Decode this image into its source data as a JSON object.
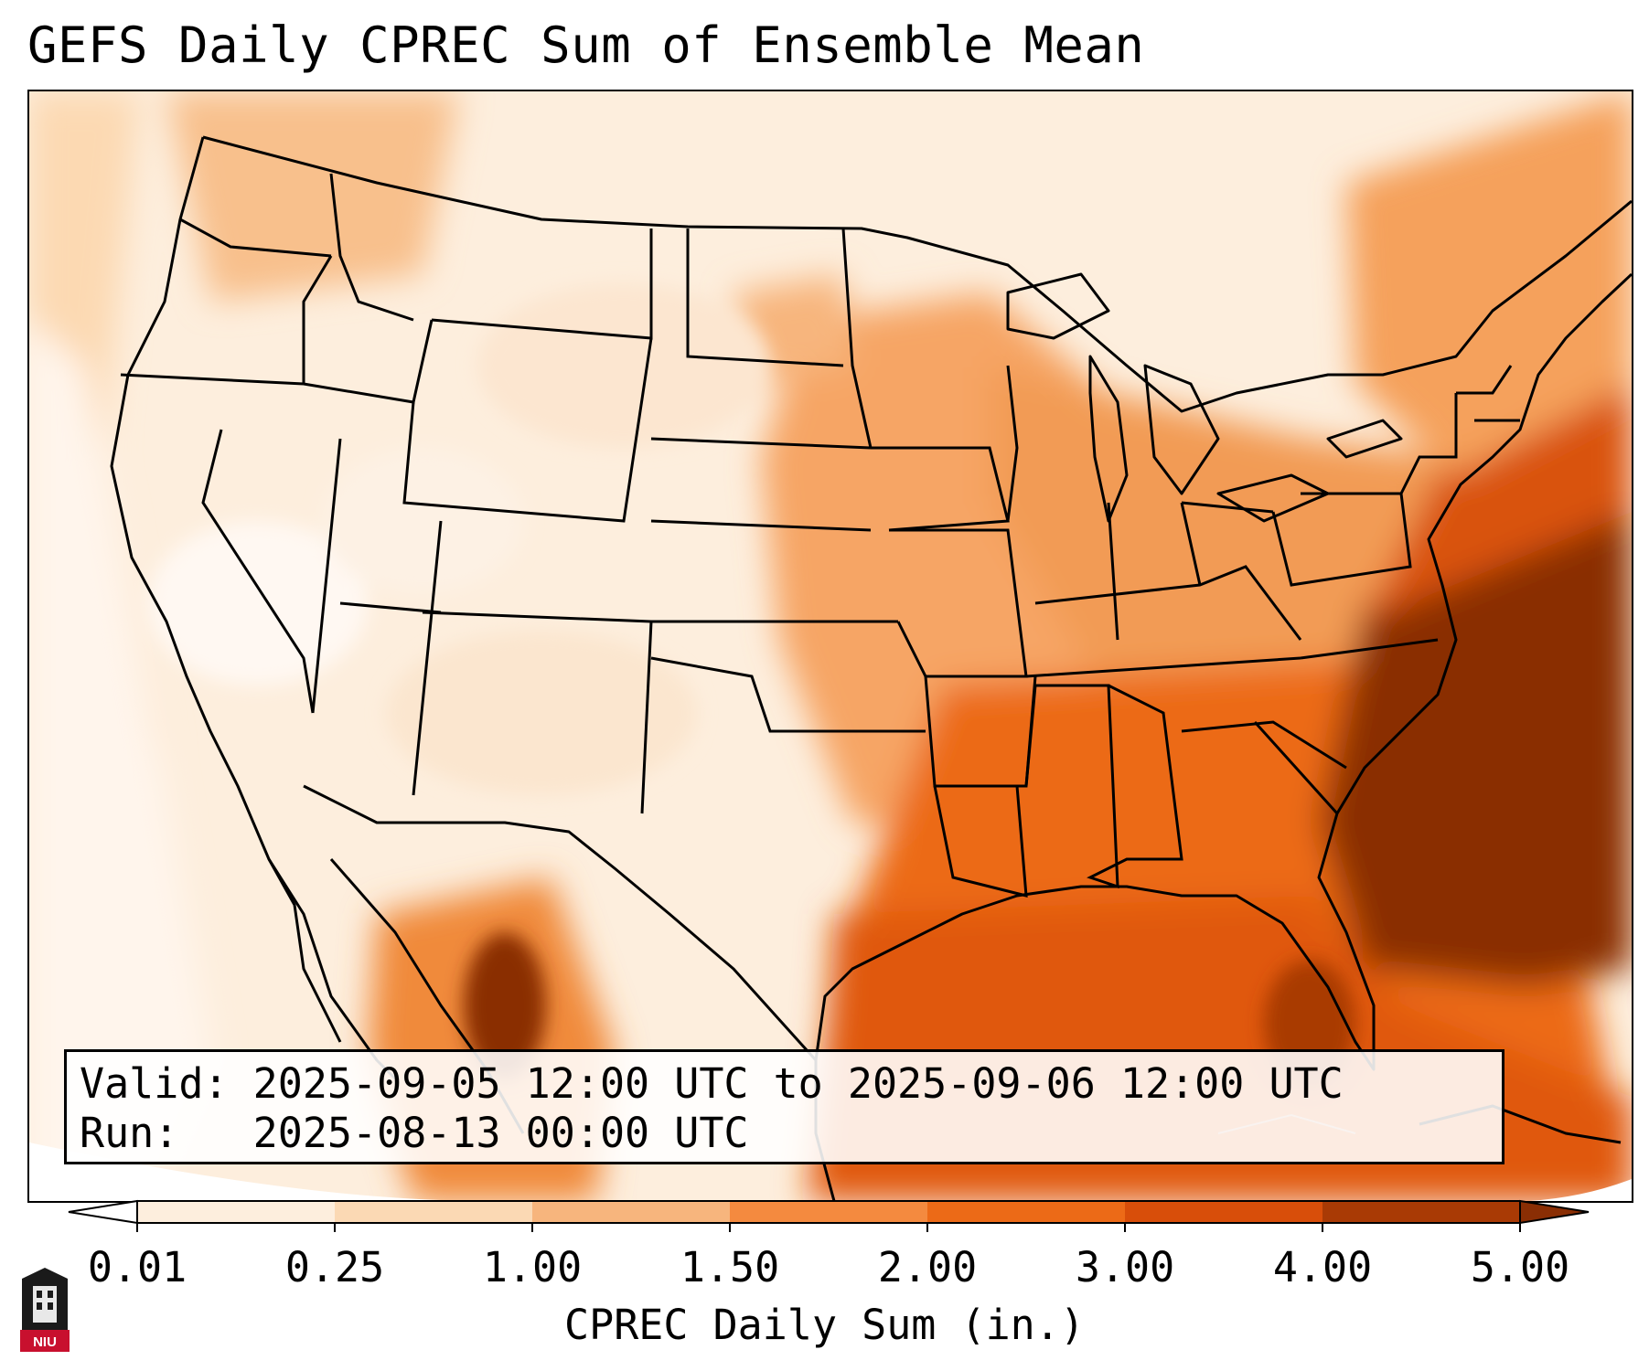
{
  "title": "GEFS Daily CPREC Sum of Ensemble Mean",
  "info": {
    "valid_label": "Valid:",
    "valid_value": "2025-09-05 12:00 UTC to 2025-09-06 12:00 UTC",
    "run_label": "Run:",
    "run_value": "2025-08-13 00:00 UTC"
  },
  "colorbar": {
    "label": "CPREC Daily Sum (in.)",
    "ticks": [
      "0.01",
      "0.25",
      "1.00",
      "1.50",
      "2.00",
      "3.00",
      "4.00",
      "5.00"
    ],
    "colors": [
      "#fdeedd",
      "#fbd9b4",
      "#f7b57d",
      "#f48a3f",
      "#ec6a17",
      "#d84e0a",
      "#a93a05",
      "#8a2e04"
    ],
    "extend": "both"
  },
  "logo": {
    "text": "NIU",
    "accent": "#c8102e"
  },
  "regions": {
    "background_color": "#fdeedd",
    "west_color": "#fbe2c8",
    "central_color": "#f6a565",
    "southeast_color": "#ec6a17",
    "atlantic_heavy_color": "#8a2e04",
    "mexico_heavy_color": "#8a2e04"
  }
}
